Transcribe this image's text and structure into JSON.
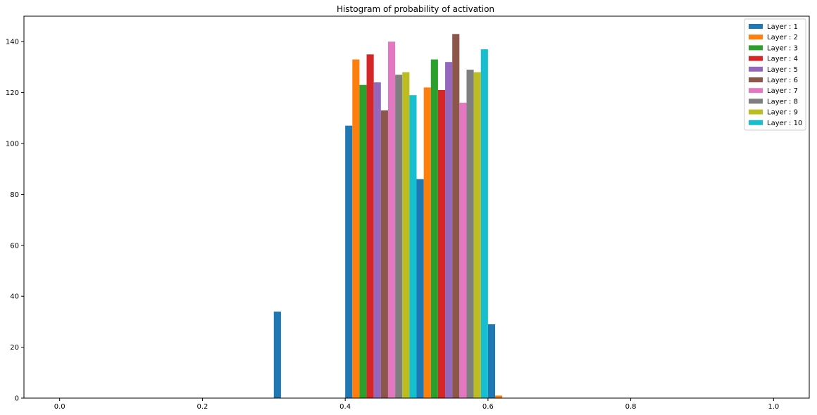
{
  "chart_data": {
    "type": "bar",
    "title": "Histogram of probability of activation",
    "xlabel": "",
    "ylabel": "",
    "xlim": [
      -0.05,
      1.05
    ],
    "ylim": [
      0,
      150
    ],
    "x_ticks": [
      0.0,
      0.2,
      0.4,
      0.6,
      0.8,
      1.0
    ],
    "x_tick_labels": [
      "0.0",
      "0.2",
      "0.4",
      "0.6",
      "0.8",
      "1.0"
    ],
    "y_ticks": [
      0,
      20,
      40,
      60,
      80,
      100,
      120,
      140
    ],
    "y_tick_labels": [
      "0",
      "20",
      "40",
      "60",
      "80",
      "100",
      "120",
      "140"
    ],
    "grid": false,
    "legend_position": "top-right",
    "bin_edges": [
      0.0,
      0.1,
      0.2,
      0.3,
      0.4,
      0.5,
      0.6,
      0.7,
      0.8,
      0.9,
      1.0
    ],
    "series": [
      {
        "name": "Layer : 1",
        "color": "#1f77b4",
        "values": [
          0,
          0,
          0,
          34,
          107,
          86,
          29,
          0,
          0,
          0
        ]
      },
      {
        "name": "Layer : 2",
        "color": "#ff7f0e",
        "values": [
          0,
          0,
          0,
          0,
          133,
          122,
          1,
          0,
          0,
          0
        ]
      },
      {
        "name": "Layer : 3",
        "color": "#2ca02c",
        "values": [
          0,
          0,
          0,
          0,
          123,
          133,
          0,
          0,
          0,
          0
        ]
      },
      {
        "name": "Layer : 4",
        "color": "#d62728",
        "values": [
          0,
          0,
          0,
          0,
          135,
          121,
          0,
          0,
          0,
          0
        ]
      },
      {
        "name": "Layer : 5",
        "color": "#9467bd",
        "values": [
          0,
          0,
          0,
          0,
          124,
          132,
          0,
          0,
          0,
          0
        ]
      },
      {
        "name": "Layer : 6",
        "color": "#8c564b",
        "values": [
          0,
          0,
          0,
          0,
          113,
          143,
          0,
          0,
          0,
          0
        ]
      },
      {
        "name": "Layer : 7",
        "color": "#e377c2",
        "values": [
          0,
          0,
          0,
          0,
          140,
          116,
          0,
          0,
          0,
          0
        ]
      },
      {
        "name": "Layer : 8",
        "color": "#7f7f7f",
        "values": [
          0,
          0,
          0,
          0,
          127,
          129,
          0,
          0,
          0,
          0
        ]
      },
      {
        "name": "Layer : 9",
        "color": "#bcbd22",
        "values": [
          0,
          0,
          0,
          0,
          128,
          128,
          0,
          0,
          0,
          0
        ]
      },
      {
        "name": "Layer : 10",
        "color": "#17becf",
        "values": [
          0,
          0,
          0,
          0,
          119,
          137,
          0,
          0,
          0,
          0
        ]
      }
    ]
  }
}
